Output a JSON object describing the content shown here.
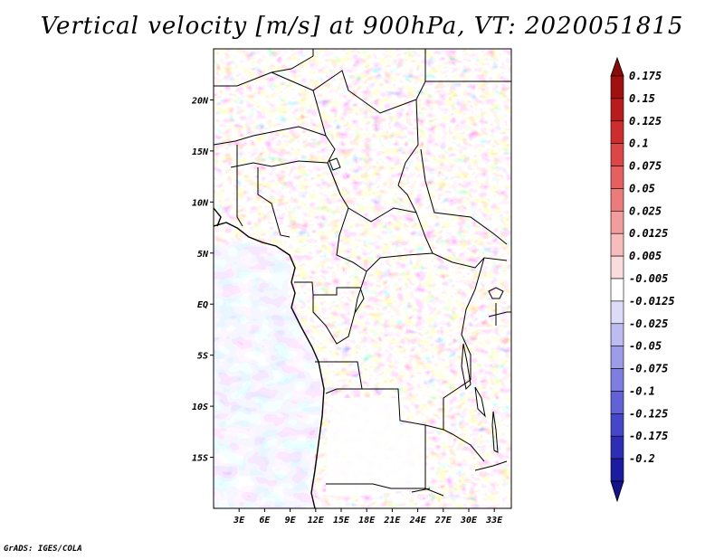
{
  "title": "Vertical velocity [m/s] at 900hPa, VT: 2020051815",
  "credit": "GrADS: IGES/COLA",
  "map": {
    "lon_range": [
      0,
      35
    ],
    "lat_range": [
      -20,
      25
    ],
    "lat_ticks": [
      {
        "value": 20,
        "label": "20N"
      },
      {
        "value": 15,
        "label": "15N"
      },
      {
        "value": 10,
        "label": "10N"
      },
      {
        "value": 5,
        "label": "5N"
      },
      {
        "value": 0,
        "label": "EQ"
      },
      {
        "value": -5,
        "label": "5S"
      },
      {
        "value": -10,
        "label": "10S"
      },
      {
        "value": -15,
        "label": "15S"
      }
    ],
    "lon_ticks": [
      {
        "value": 3,
        "label": "3E"
      },
      {
        "value": 6,
        "label": "6E"
      },
      {
        "value": 9,
        "label": "9E"
      },
      {
        "value": 12,
        "label": "12E"
      },
      {
        "value": 15,
        "label": "15E"
      },
      {
        "value": 18,
        "label": "18E"
      },
      {
        "value": 21,
        "label": "21E"
      },
      {
        "value": 24,
        "label": "24E"
      },
      {
        "value": 27,
        "label": "27E"
      },
      {
        "value": 30,
        "label": "30E"
      },
      {
        "value": 33,
        "label": "33E"
      }
    ]
  },
  "colorbar": {
    "levels": [
      {
        "label": "0.175",
        "color": "#a01010"
      },
      {
        "label": "0.15",
        "color": "#b81c1c"
      },
      {
        "label": "0.125",
        "color": "#cc2e2e"
      },
      {
        "label": "0.1",
        "color": "#dc4646"
      },
      {
        "label": "0.075",
        "color": "#e56060"
      },
      {
        "label": "0.05",
        "color": "#ec7c7c"
      },
      {
        "label": "0.025",
        "color": "#f29c9c"
      },
      {
        "label": "0.0125",
        "color": "#f7bcbc"
      },
      {
        "label": "0.005",
        "color": "#fadcdc"
      },
      {
        "label": "-0.005",
        "color": "#ffffff"
      },
      {
        "label": "-0.0125",
        "color": "#dcdcf6"
      },
      {
        "label": "-0.025",
        "color": "#bcbcf0"
      },
      {
        "label": "-0.05",
        "color": "#9c9ce8"
      },
      {
        "label": "-0.075",
        "color": "#7e7ee0"
      },
      {
        "label": "-0.1",
        "color": "#6262d6"
      },
      {
        "label": "-0.125",
        "color": "#4646c8"
      },
      {
        "label": "-0.175",
        "color": "#2e2eb4"
      },
      {
        "label": "-0.2",
        "color": "#1c1ca0"
      }
    ],
    "top_color": "#8a0a0a",
    "bottom_color": "#14148a"
  }
}
